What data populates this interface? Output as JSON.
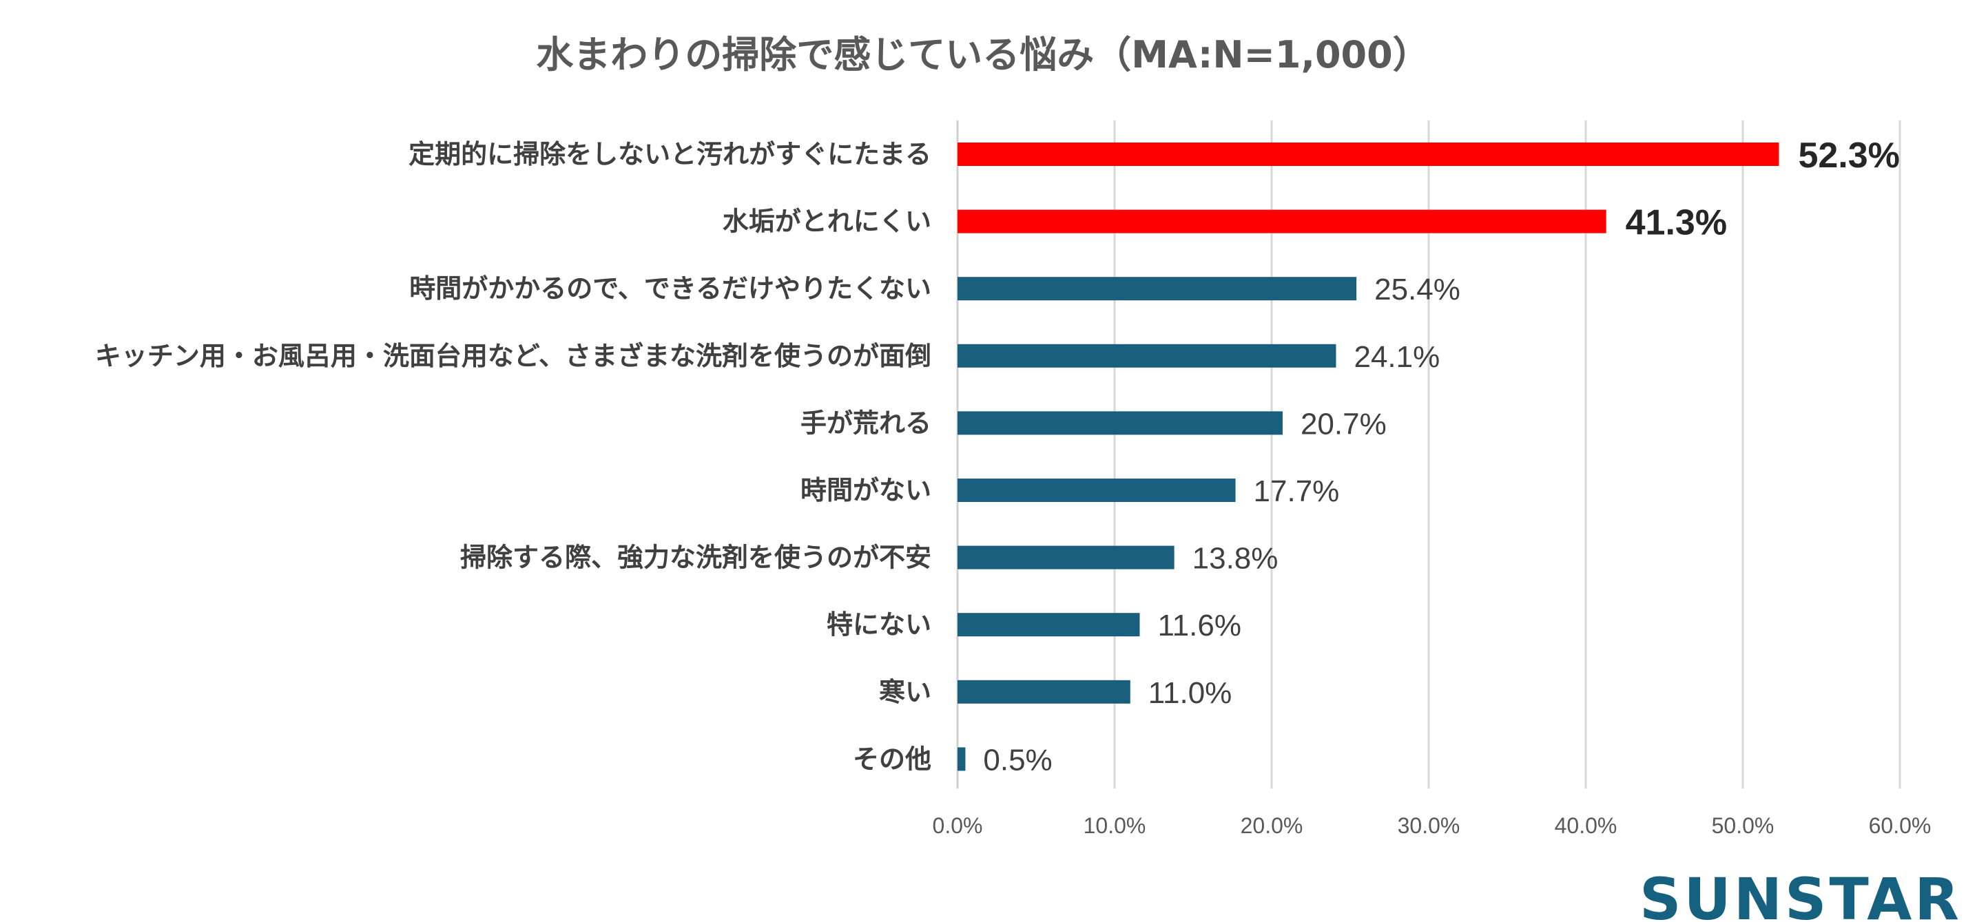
{
  "title": "水まわりの掃除で感じている悩み（MA:N=1,000）",
  "brand": "SUNSTAR",
  "colors": {
    "highlight_bar": "#ff0000",
    "default_bar": "#1a5e7e",
    "brand": "#16617f",
    "grid": "#d9d9d9"
  },
  "chart_data": {
    "type": "bar",
    "orientation": "horizontal",
    "title": "水まわりの掃除で感じている悩み（MA:N=1,000）",
    "categories": [
      "定期的に掃除をしないと汚れがすぐにたまる",
      "水垢がとれにくい",
      "時間がかかるので、できるだけやりたくない",
      "キッチン用・お風呂用・洗面台用など、さまざまな洗剤を使うのが面倒",
      "手が荒れる",
      "時間がない",
      "掃除する際、強力な洗剤を使うのが不安",
      "特にない",
      "寒い",
      "その他"
    ],
    "values": [
      52.3,
      41.3,
      25.4,
      24.1,
      20.7,
      17.7,
      13.8,
      11.6,
      11.0,
      0.5
    ],
    "value_labels": [
      "52.3%",
      "41.3%",
      "25.4%",
      "24.1%",
      "20.7%",
      "17.7%",
      "13.8%",
      "11.6%",
      "11.0%",
      "0.5%"
    ],
    "highlighted": [
      true,
      true,
      false,
      false,
      false,
      false,
      false,
      false,
      false,
      false
    ],
    "xlim": [
      0,
      60
    ],
    "xticks": [
      0,
      10,
      20,
      30,
      40,
      50,
      60
    ],
    "xtick_labels": [
      "0.0%",
      "10.0%",
      "20.0%",
      "30.0%",
      "40.0%",
      "50.0%",
      "60.0%"
    ],
    "grid": true,
    "legend": "none"
  }
}
